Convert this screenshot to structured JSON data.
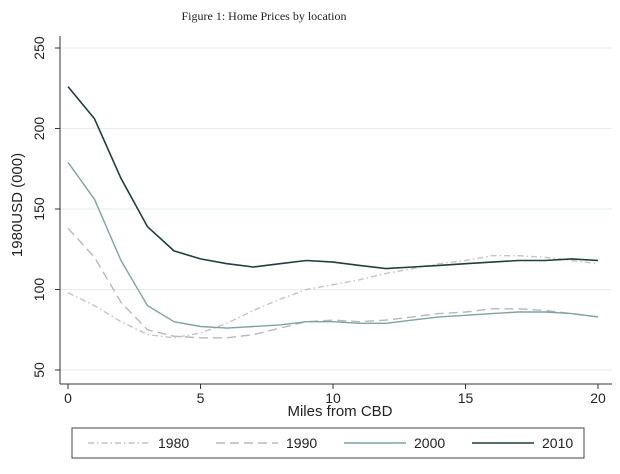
{
  "caption": "Figure 1:  Home Prices by location",
  "chart_data": {
    "type": "line",
    "xlabel": "Miles from CBD",
    "ylabel": "1980USD (000)",
    "xlim": [
      0,
      20
    ],
    "ylim": [
      50,
      250
    ],
    "xticks": [
      0,
      5,
      10,
      15,
      20
    ],
    "yticks": [
      50,
      100,
      150,
      200,
      250
    ],
    "grid": "horizontal",
    "legend_position": "bottom",
    "x": [
      0,
      1,
      2,
      3,
      4,
      5,
      6,
      7,
      8,
      9,
      10,
      11,
      12,
      13,
      14,
      15,
      16,
      17,
      18,
      19,
      20
    ],
    "series": [
      {
        "name": "1980",
        "color": "#c4c4c4",
        "dash": "dashdot",
        "values": [
          98,
          90,
          80,
          72,
          70,
          73,
          79,
          87,
          94,
          100,
          103,
          106,
          110,
          113,
          116,
          118,
          121,
          121,
          120,
          118,
          116
        ]
      },
      {
        "name": "1990",
        "color": "#b8b8b8",
        "dash": "dash",
        "values": [
          138,
          120,
          92,
          75,
          71,
          70,
          70,
          72,
          76,
          80,
          81,
          80,
          81,
          83,
          85,
          86,
          88,
          88,
          87,
          85,
          83
        ]
      },
      {
        "name": "2000",
        "color": "#7fa3a3",
        "dash": "solid",
        "values": [
          179,
          156,
          118,
          90,
          80,
          77,
          76,
          77,
          78,
          80,
          80,
          79,
          79,
          81,
          83,
          84,
          85,
          86,
          86,
          85,
          83
        ]
      },
      {
        "name": "2010",
        "color": "#1f3f3b",
        "dash": "solid",
        "values": [
          226,
          206,
          169,
          139,
          124,
          119,
          116,
          114,
          116,
          118,
          117,
          115,
          113,
          114,
          115,
          116,
          117,
          118,
          118,
          119,
          118
        ]
      }
    ]
  }
}
